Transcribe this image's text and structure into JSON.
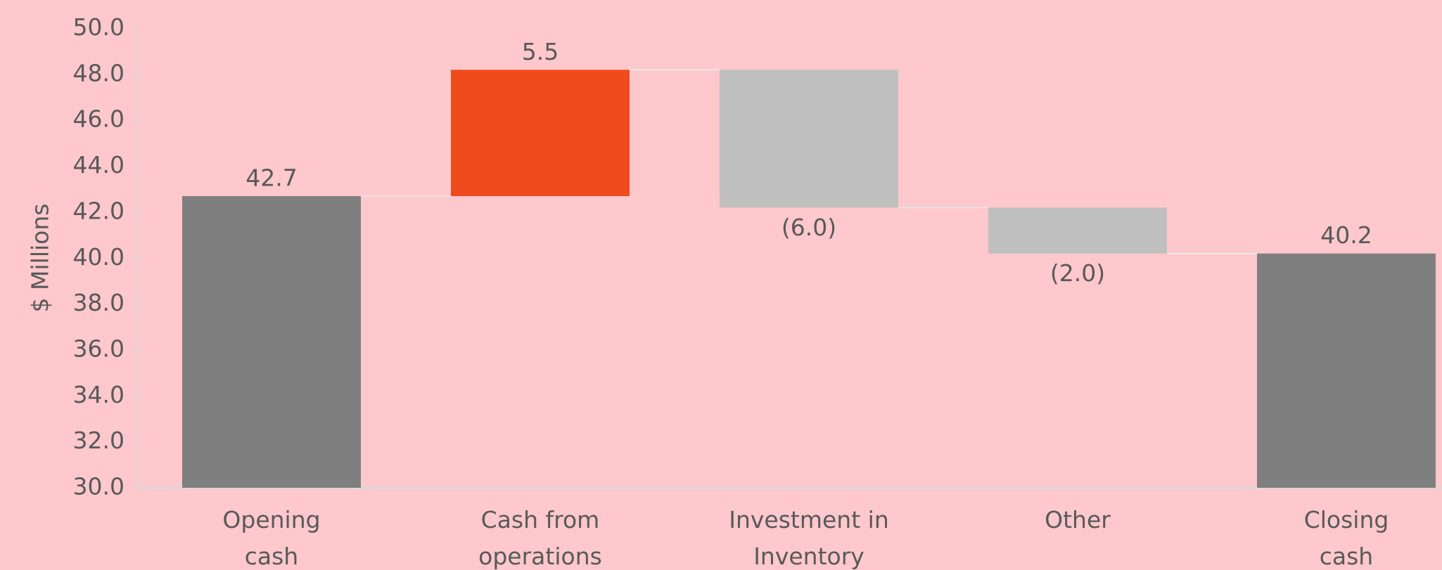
{
  "chart_data": {
    "type": "waterfall",
    "y_label": "$ Millions",
    "categories": [
      "Opening\ncash",
      "Cash from\noperations",
      "Investment in\nInventory",
      "Other",
      "Closing\ncash"
    ],
    "values": [
      42.7,
      5.5,
      -6.0,
      -2.0,
      40.2
    ],
    "value_labels": [
      "42.7",
      "5.5",
      "(6.0)",
      "(2.0)",
      "40.2"
    ],
    "colors": [
      "#7f7f7f",
      "#f04b1c",
      "#bfbfbf",
      "#bfbfbf",
      "#7f7f7f"
    ],
    "ylim": [
      30,
      50
    ],
    "yticks": [
      {
        "value": 30,
        "label": "30.0"
      },
      {
        "value": 32,
        "label": "32.0"
      },
      {
        "value": 34,
        "label": "34.0"
      },
      {
        "value": 36,
        "label": "36.0"
      },
      {
        "value": 38,
        "label": "38.0"
      },
      {
        "value": 40,
        "label": "40.0"
      },
      {
        "value": 42,
        "label": "42.0"
      },
      {
        "value": 44,
        "label": "44.0"
      },
      {
        "value": 46,
        "label": "46.0"
      },
      {
        "value": 48,
        "label": "48.0"
      },
      {
        "value": 50,
        "label": "50.0"
      }
    ]
  }
}
